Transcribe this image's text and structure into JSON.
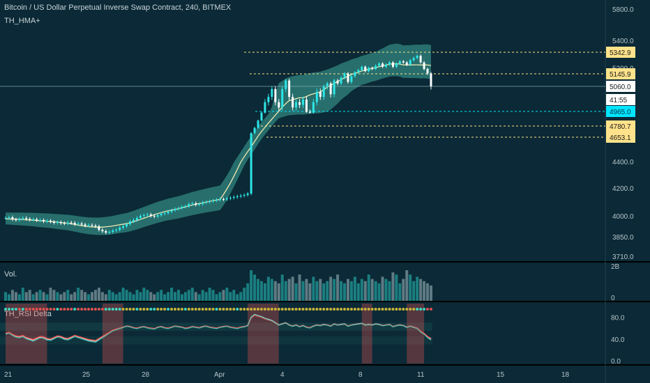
{
  "header": {
    "title": "Bitcoin / US Dollar Perpetual Inverse Swap Contract, 240, BITMEX",
    "indicator": "TH_HMA+"
  },
  "panels": {
    "volume_label": "Vol.",
    "rsi_label": "TH_RSI Delta"
  },
  "colors": {
    "background": "#0b2936",
    "up_candle": "#2ee6e6",
    "down_candle": "#ffffff",
    "hma_band_light": "#3fa79a",
    "hma_band_dark": "#7a3c4c",
    "level_line": "#ffe38a",
    "current_price_tag": "#00e5ff",
    "rsi_red": "#e0524f",
    "rsi_teal": "#41d6c0"
  },
  "price_axis": {
    "ticks": [
      "5800.0",
      "5400.0",
      "5200.0",
      "4400.0",
      "4200.0",
      "4000.0",
      "3850.0",
      "3710.0"
    ],
    "tags": [
      {
        "label": "5342.9",
        "style": "level"
      },
      {
        "label": "5145.9",
        "style": "level"
      },
      {
        "label": "5060.0",
        "style": "current"
      },
      {
        "label": "41:55",
        "style": "timer"
      },
      {
        "label": "4965.0",
        "style": "cyan"
      },
      {
        "label": "4780.7",
        "style": "level"
      },
      {
        "label": "4653.1",
        "style": "level"
      }
    ]
  },
  "volume_axis": {
    "ticks": [
      "2B",
      "0"
    ]
  },
  "rsi_axis": {
    "ticks": [
      "80.0",
      "40.0",
      "0.0"
    ]
  },
  "x_axis": {
    "ticks": [
      "21",
      "25",
      "28",
      "Apr",
      "4",
      "8",
      "11",
      "15",
      "18"
    ]
  },
  "chart_data": {
    "type": "candlestick",
    "title": "Bitcoin / US Dollar Perpetual Inverse Swap Contract, 240, BITMEX",
    "indicator": "TH_HMA+",
    "ylim": [
      3710,
      5800
    ],
    "x_tick_labels": [
      "21",
      "25",
      "28",
      "Apr",
      "4",
      "8",
      "11",
      "15",
      "18"
    ],
    "levels": [
      5342.9,
      5145.9,
      4965.0,
      4780.7,
      4653.1
    ],
    "last_price": 5060.0,
    "close_series": [
      3985,
      3990,
      3975,
      3970,
      3980,
      3985,
      3978,
      3972,
      3975,
      3968,
      3970,
      3960,
      3965,
      3958,
      3950,
      3955,
      3948,
      3945,
      3952,
      3950,
      3940,
      3945,
      3938,
      3930,
      3935,
      3930,
      3925,
      3900,
      3890,
      3880,
      3885,
      3895,
      3900,
      3915,
      3925,
      3940,
      3960,
      3970,
      3985,
      4000,
      4005,
      4010,
      4000,
      3995,
      4005,
      4015,
      4020,
      4030,
      4040,
      4050,
      4055,
      4065,
      4070,
      4085,
      4090,
      4080,
      4085,
      4095,
      4100,
      4105,
      4110,
      4115,
      4120,
      4118,
      4125,
      4130,
      4135,
      4140,
      4145,
      4150,
      4160,
      4700,
      4760,
      4850,
      4950,
      5000,
      5020,
      5050,
      5000,
      4980,
      5050,
      5100,
      5020,
      4980,
      5000,
      4990,
      5010,
      4960,
      4950,
      5000,
      5040,
      5020,
      5060,
      5080,
      5030,
      5100,
      5080,
      5120,
      5150,
      5090,
      5130,
      5160,
      5180,
      5210,
      5170,
      5200,
      5190,
      5220,
      5240,
      5210,
      5230,
      5250,
      5210,
      5240,
      5260,
      5250,
      5230,
      5270,
      5290,
      5310,
      5250,
      5190,
      5150,
      5060
    ],
    "volume_series": [
      4,
      3,
      5,
      4,
      3,
      6,
      4,
      5,
      3,
      4,
      5,
      4,
      3,
      6,
      5,
      4,
      3,
      4,
      5,
      3,
      4,
      6,
      5,
      4,
      3,
      4,
      5,
      6,
      4,
      3,
      5,
      4,
      3,
      4,
      6,
      5,
      4,
      3,
      5,
      4,
      6,
      5,
      4,
      3,
      4,
      5,
      3,
      4,
      6,
      4,
      5,
      3,
      4,
      5,
      6,
      4,
      3,
      5,
      4,
      6,
      5,
      3,
      4,
      5,
      6,
      4,
      5,
      3,
      4,
      6,
      8,
      14,
      12,
      10,
      9,
      8,
      11,
      10,
      9,
      8,
      12,
      9,
      10,
      11,
      8,
      12,
      9,
      10,
      8,
      11,
      9,
      10,
      8,
      9,
      11,
      10,
      12,
      9,
      8,
      10,
      9,
      11,
      8,
      10,
      9,
      12,
      10,
      9,
      8,
      11,
      10,
      9,
      13,
      12,
      8,
      10,
      14,
      12,
      9,
      11,
      10,
      9,
      8,
      7
    ],
    "rsi_series": [
      50,
      52,
      48,
      45,
      44,
      46,
      42,
      40,
      38,
      41,
      44,
      43,
      40,
      39,
      42,
      45,
      44,
      41,
      40,
      43,
      46,
      44,
      42,
      40,
      38,
      37,
      36,
      40,
      44,
      48,
      52,
      56,
      58,
      60,
      62,
      64,
      63,
      61,
      60,
      62,
      63,
      61,
      60,
      59,
      62,
      63,
      61,
      60,
      62,
      64,
      63,
      62,
      60,
      61,
      63,
      62,
      61,
      63,
      64,
      62,
      61,
      60,
      62,
      63,
      64,
      62,
      61,
      60,
      62,
      63,
      65,
      80,
      85,
      83,
      81,
      78,
      76,
      74,
      70,
      66,
      68,
      70,
      66,
      64,
      66,
      63,
      65,
      62,
      61,
      64,
      66,
      65,
      67,
      66,
      64,
      68,
      66,
      67,
      68,
      64,
      66,
      67,
      68,
      69,
      66,
      67,
      66,
      68,
      67,
      65,
      66,
      67,
      63,
      65,
      66,
      65,
      62,
      64,
      62,
      60,
      54,
      50,
      44,
      40
    ]
  }
}
